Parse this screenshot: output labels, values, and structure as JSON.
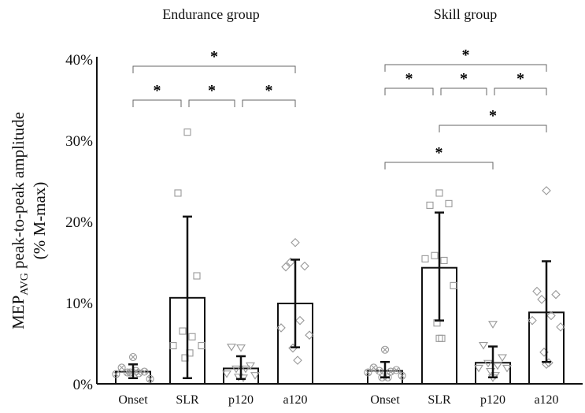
{
  "chart_data": {
    "type": "bar",
    "ylabel_main": "MEP",
    "ylabel_sub": "AVG",
    "ylabel_rest": " peak-to-peak amplitude",
    "ylabel_line2": "(% M-max)",
    "ylim": [
      0,
      40
    ],
    "yticks": [
      "0%",
      "10%",
      "20%",
      "30%",
      "40%"
    ],
    "significance_marker": "*",
    "groups": [
      {
        "title": "Endurance group",
        "categories": [
          "Onset",
          "SLR",
          "p120",
          "a120"
        ],
        "means": [
          1.5,
          10.6,
          1.9,
          9.9
        ],
        "sd_low": [
          0.7,
          0.7,
          0.6,
          4.5
        ],
        "sd_high": [
          2.4,
          20.6,
          3.4,
          15.3
        ],
        "points": [
          [
            3.3,
            2.0,
            1.5,
            1.4,
            1.3,
            1.2,
            0.6,
            1.4,
            1.6
          ],
          [
            31.0,
            23.5,
            13.3,
            6.5,
            5.8,
            4.7,
            4.7,
            3.2,
            3.8
          ],
          [
            4.4,
            4.5,
            2.2,
            1.8,
            1.8,
            1.2,
            1.0,
            0.8,
            0.7
          ],
          [
            17.4,
            14.4,
            14.5,
            15.0,
            7.8,
            6.9,
            6.0,
            4.4,
            2.9
          ]
        ],
        "comparisons": [
          [
            0,
            3,
            0
          ],
          [
            0,
            1,
            1
          ],
          [
            1,
            2,
            1
          ],
          [
            2,
            3,
            1
          ]
        ]
      },
      {
        "title": "Skill group",
        "categories": [
          "Onset",
          "SLR",
          "p120",
          "a120"
        ],
        "means": [
          1.6,
          14.3,
          2.6,
          8.8
        ],
        "sd_low": [
          0.8,
          7.8,
          0.8,
          2.7
        ],
        "sd_high": [
          2.7,
          21.1,
          4.6,
          15.1
        ],
        "points": [
          [
            4.2,
            2.0,
            1.7,
            1.6,
            1.5,
            1.4,
            1.0,
            0.8,
            0.8
          ],
          [
            23.5,
            22.0,
            22.2,
            15.8,
            15.2,
            15.4,
            12.1,
            7.5,
            5.6,
            5.6
          ],
          [
            7.3,
            4.7,
            3.2,
            2.5,
            2.2,
            1.9,
            1.9,
            1.5,
            1.0,
            0.7
          ],
          [
            23.8,
            11.4,
            11.0,
            10.4,
            8.4,
            7.8,
            7.0,
            3.9,
            2.6,
            2.4
          ]
        ],
        "comparisons": [
          [
            0,
            3,
            0
          ],
          [
            0,
            1,
            1
          ],
          [
            1,
            2,
            1
          ],
          [
            2,
            3,
            1
          ],
          [
            1,
            3,
            2
          ],
          [
            0,
            2,
            3
          ]
        ]
      }
    ],
    "marker_shapes": [
      "circle-x",
      "square",
      "triangle-down",
      "diamond"
    ]
  }
}
